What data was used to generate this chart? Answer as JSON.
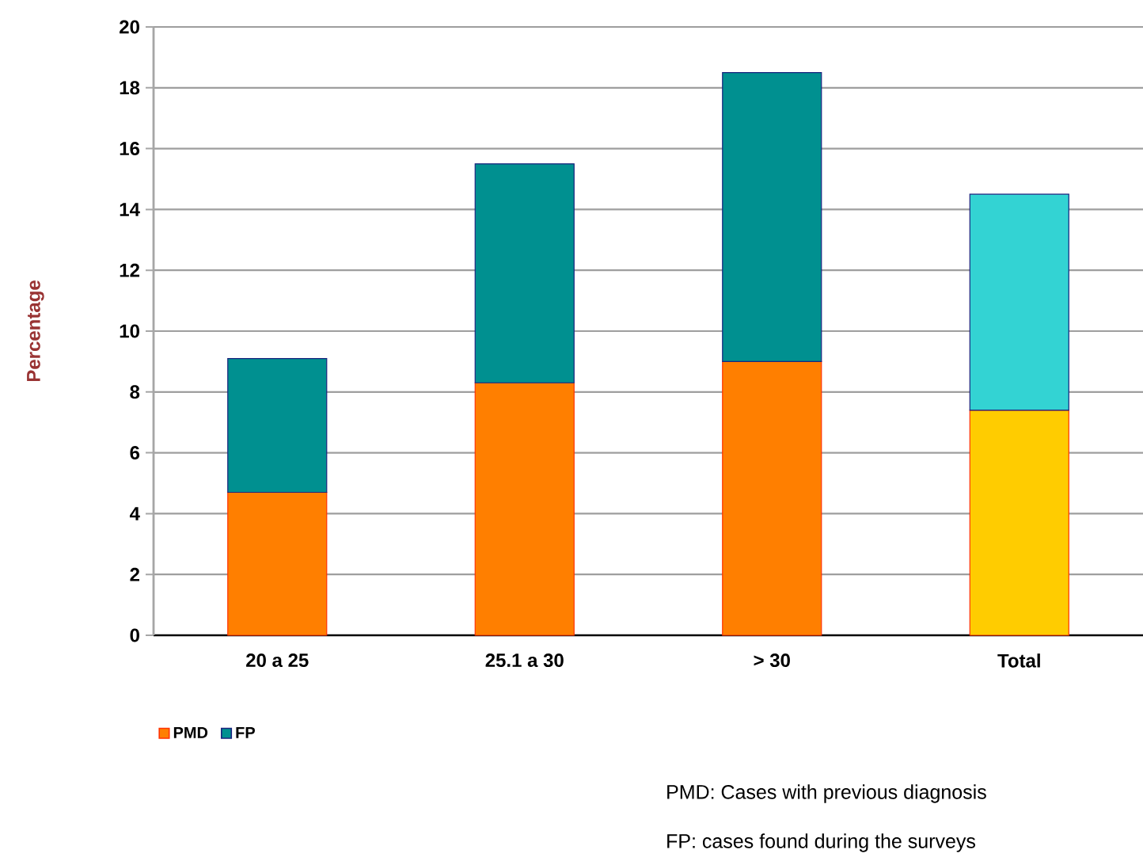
{
  "chart_data": {
    "type": "bar",
    "stacked": true,
    "ylabel": "Percentage",
    "categories": [
      "20 a 25",
      "25.1 a 30",
      "> 30",
      "Total"
    ],
    "series": [
      {
        "name": "PMD",
        "color": "#ff7f00",
        "colors": [
          "#ff7f00",
          "#ff7f00",
          "#ff7f00",
          "#ffcc00"
        ],
        "values": [
          4.7,
          8.3,
          9.0,
          7.4
        ]
      },
      {
        "name": "FP",
        "color": "#009090",
        "colors": [
          "#009090",
          "#009090",
          "#009090",
          "#33d3d3"
        ],
        "values": [
          4.4,
          7.2,
          9.5,
          7.1
        ]
      }
    ],
    "ylim": [
      0,
      20
    ],
    "yticks": [
      0,
      2,
      4,
      6,
      8,
      10,
      12,
      14,
      16,
      18,
      20
    ],
    "grid": "y",
    "legend": "bottom left",
    "annotations": [
      "PMD: Cases with previous diagnosis",
      "FP: cases found during the surveys"
    ]
  }
}
